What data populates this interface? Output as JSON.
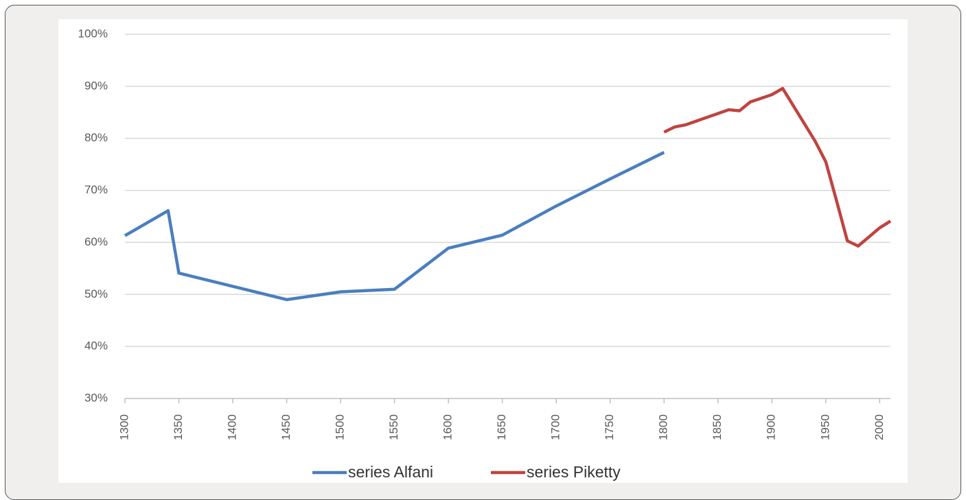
{
  "chart_data": {
    "type": "line",
    "series": [
      {
        "name": "series Alfani",
        "color": "#4a7ebf",
        "x": [
          1300,
          1340,
          1350,
          1450,
          1500,
          1550,
          1600,
          1650,
          1700,
          1750,
          1800
        ],
        "values": [
          61.3,
          66.1,
          54.1,
          49,
          50.5,
          51,
          58.9,
          61.4,
          67,
          72.2,
          77.3
        ]
      },
      {
        "name": "series Piketty",
        "color": "#c0433f",
        "x": [
          1800,
          1810,
          1820,
          1860,
          1870,
          1880,
          1900,
          1910,
          1940,
          1950,
          1960,
          1970,
          1980,
          2000,
          2010
        ],
        "values": [
          81.2,
          82.2,
          82.6,
          85.5,
          85.3,
          87,
          88.4,
          89.6,
          79.5,
          75.5,
          68,
          60.3,
          59.3,
          62.8,
          64.1
        ]
      }
    ],
    "xlim": [
      1300,
      2010
    ],
    "xticks": [
      1300,
      1350,
      1400,
      1450,
      1500,
      1550,
      1600,
      1650,
      1700,
      1750,
      1800,
      1850,
      1900,
      1950,
      2000
    ],
    "ylim": [
      30,
      100
    ],
    "yticks": [
      {
        "value": 30,
        "label": "30%"
      },
      {
        "value": 40,
        "label": "40%"
      },
      {
        "value": 50,
        "label": "50%"
      },
      {
        "value": 60,
        "label": "60%"
      },
      {
        "value": 70,
        "label": "70%"
      },
      {
        "value": 80,
        "label": "80%"
      },
      {
        "value": 90,
        "label": "90%"
      },
      {
        "value": 100,
        "label": "100%"
      }
    ],
    "grid": true,
    "legend": "bottom"
  }
}
